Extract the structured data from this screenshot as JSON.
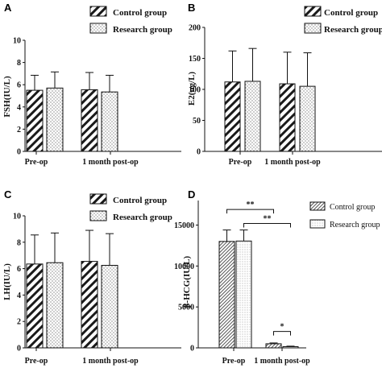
{
  "colors": {
    "axis": "#111111",
    "bar_stroke": "#111111",
    "text": "#111111"
  },
  "chart_data": [
    {
      "panel": "A",
      "type": "bar",
      "categories": [
        "Pre-op",
        "1 month post-op"
      ],
      "series": [
        {
          "name": "Control group",
          "values": [
            5.5,
            5.55
          ],
          "errors": [
            1.35,
            1.55
          ],
          "pattern": "diagonal"
        },
        {
          "name": "Research group",
          "values": [
            5.7,
            5.35
          ],
          "errors": [
            1.45,
            1.5
          ],
          "pattern": "dots"
        }
      ],
      "ylabel": "FSH(IU/L)",
      "ylim": [
        0,
        10
      ],
      "yticks": [
        "0",
        "2",
        "4",
        "6",
        "8",
        "10"
      ],
      "legend": "top-right",
      "significance": []
    },
    {
      "panel": "B",
      "type": "bar",
      "categories": [
        "Pre-op",
        "1 month post-op"
      ],
      "series": [
        {
          "name": "Control group",
          "values": [
            112,
            109
          ],
          "errors": [
            50,
            51
          ],
          "pattern": "diagonal"
        },
        {
          "name": "Research group",
          "values": [
            113,
            105
          ],
          "errors": [
            53,
            54
          ],
          "pattern": "dots"
        }
      ],
      "ylabel": "E2(ng/L)",
      "ylim": [
        0,
        200
      ],
      "yticks": [
        "0",
        "50",
        "100",
        "150",
        "200"
      ],
      "legend": "top-right",
      "significance": []
    },
    {
      "panel": "C",
      "type": "bar",
      "categories": [
        "Pre-op",
        "1 month post-op"
      ],
      "series": [
        {
          "name": "Control group",
          "values": [
            6.35,
            6.55
          ],
          "errors": [
            2.2,
            2.35
          ],
          "pattern": "diagonal"
        },
        {
          "name": "Research group",
          "values": [
            6.45,
            6.25
          ],
          "errors": [
            2.25,
            2.4
          ],
          "pattern": "dots"
        }
      ],
      "ylabel": "LH(IU/L)",
      "ylim": [
        0,
        10
      ],
      "yticks": [
        "0",
        "2",
        "4",
        "6",
        "8",
        "10"
      ],
      "legend": "top-right",
      "significance": []
    },
    {
      "panel": "D",
      "type": "bar",
      "categories": [
        "Pre-op",
        "1 month post-op"
      ],
      "series": [
        {
          "name": "Control group",
          "values": [
            13000,
            500
          ],
          "errors": [
            1400,
            100
          ],
          "pattern": "diagonal-fine"
        },
        {
          "name": "Research group",
          "values": [
            13050,
            150
          ],
          "errors": [
            1350,
            60
          ],
          "pattern": "dots-fine"
        }
      ],
      "ylabel": "β-HCG(IU/L)",
      "ylim": [
        0,
        18000
      ],
      "yticks": [
        "0",
        "5000",
        "10000",
        "15000"
      ],
      "legend": "top-right",
      "significance": [
        {
          "label": "**",
          "from": [
            0,
            0
          ],
          "to": [
            1,
            0
          ],
          "y": 16900
        },
        {
          "label": "**",
          "from": [
            0,
            1
          ],
          "to": [
            1,
            1
          ],
          "y": 15200
        },
        {
          "label": "*",
          "from": [
            1,
            0
          ],
          "to": [
            1,
            1
          ],
          "y": 2000
        }
      ]
    }
  ]
}
